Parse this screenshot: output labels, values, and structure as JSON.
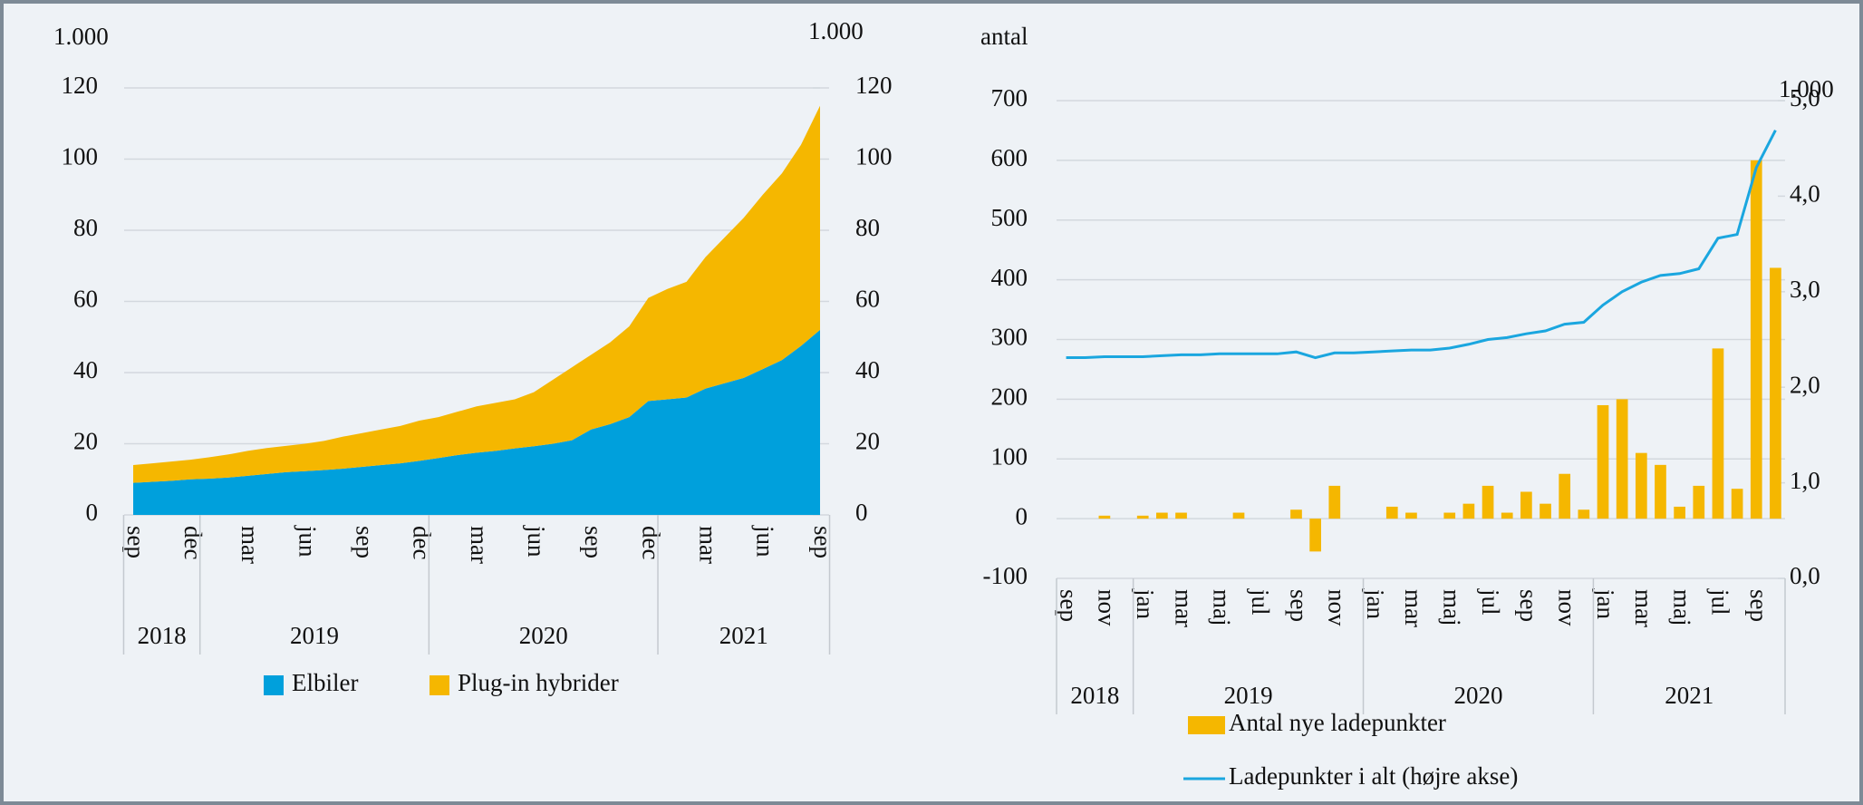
{
  "chart_data": [
    {
      "type": "area",
      "stacked": true,
      "y_label": "1.000",
      "y2_label": "1.000",
      "categories": [
        "sep",
        null,
        null,
        "dec",
        null,
        null,
        "mar",
        null,
        null,
        "jun",
        null,
        null,
        "sep",
        null,
        null,
        "dec",
        null,
        null,
        "mar",
        null,
        null,
        "jun",
        null,
        null,
        "sep",
        null,
        null,
        "dec",
        null,
        null,
        "mar",
        null,
        null,
        "jun",
        null,
        null,
        "sep"
      ],
      "year_groups": [
        "2018",
        "2019",
        "2020",
        "2021"
      ],
      "series": [
        {
          "name": "Elbiler",
          "color": "#00a0dc",
          "values": [
            9,
            9.3,
            9.6,
            10,
            10.2,
            10.5,
            11,
            11.5,
            12,
            12.3,
            12.6,
            13,
            13.5,
            14,
            14.5,
            15.2,
            16,
            16.8,
            17.5,
            18,
            18.7,
            19.3,
            20,
            21,
            24,
            25.5,
            27.5,
            32,
            32.5,
            33,
            35.5,
            37,
            38.5,
            41,
            43.5,
            47.5,
            52
          ]
        },
        {
          "name": "Plug-in hybrider",
          "color": "#f5b700",
          "values": [
            5,
            5.2,
            5.4,
            5.5,
            6,
            6.5,
            7,
            7.3,
            7.4,
            7.7,
            8.2,
            9,
            9.5,
            10,
            10.5,
            11.3,
            11.5,
            12.2,
            13,
            13.5,
            13.8,
            15.2,
            18,
            20.5,
            21,
            23,
            25.5,
            29,
            31,
            32.5,
            37,
            41,
            45,
            49,
            52.5,
            56.5,
            63
          ]
        }
      ],
      "ylim": [
        0,
        120
      ],
      "yticks": [
        0,
        20,
        40,
        60,
        80,
        100,
        120
      ],
      "y2lim": [
        0,
        120
      ],
      "y2ticks": [
        0,
        20,
        40,
        60,
        80,
        100,
        120
      ],
      "grid": true,
      "legend": "bottom"
    },
    {
      "type": "bar_line",
      "y_label": "antal",
      "y2_label": "1.000",
      "categories": [
        "sep",
        null,
        "nov",
        null,
        "jan",
        null,
        "mar",
        null,
        "maj",
        null,
        "jul",
        null,
        "sep",
        null,
        "nov",
        null,
        "jan",
        null,
        "mar",
        null,
        "maj",
        null,
        "jul",
        null,
        "sep",
        null,
        "nov",
        null,
        "jan",
        null,
        "mar",
        null,
        "maj",
        null,
        "jul",
        null,
        "sep",
        null
      ],
      "year_groups": [
        "2018",
        "2019",
        "2020",
        "2021"
      ],
      "series": [
        {
          "name": "Antal nye ladepunkter",
          "type": "bar",
          "color": "#f5b700",
          "values": [
            0,
            0,
            5,
            0,
            5,
            10,
            10,
            0,
            0,
            10,
            0,
            0,
            15,
            -55,
            55,
            0,
            0,
            20,
            10,
            0,
            10,
            25,
            55,
            10,
            45,
            25,
            75,
            15,
            190,
            200,
            110,
            90,
            20,
            55,
            285,
            50,
            600,
            420
          ]
        },
        {
          "name": "Ladepunkter i alt (højre akse)",
          "type": "line",
          "axis": "y2",
          "color": "#1aa6df",
          "values": [
            2.31,
            2.31,
            2.32,
            2.32,
            2.32,
            2.33,
            2.34,
            2.34,
            2.35,
            2.35,
            2.35,
            2.35,
            2.37,
            2.31,
            2.36,
            2.36,
            2.37,
            2.38,
            2.39,
            2.39,
            2.41,
            2.45,
            2.5,
            2.52,
            2.56,
            2.59,
            2.66,
            2.68,
            2.86,
            3.0,
            3.1,
            3.17,
            3.19,
            3.24,
            3.56,
            3.6,
            4.3,
            4.69
          ]
        }
      ],
      "ylim": [
        -100,
        700
      ],
      "yticks": [
        -100,
        0,
        100,
        200,
        300,
        400,
        500,
        600,
        700
      ],
      "y2lim": [
        0,
        5
      ],
      "y2ticks": [
        {
          "value": 0,
          "label": "0,0"
        },
        {
          "value": 1,
          "label": "1,0"
        },
        {
          "value": 2,
          "label": "2,0"
        },
        {
          "value": 3,
          "label": "3,0"
        },
        {
          "value": 4,
          "label": "4,0"
        },
        {
          "value": 5,
          "label": "5,0"
        }
      ],
      "grid": true,
      "legend": "bottom"
    }
  ]
}
